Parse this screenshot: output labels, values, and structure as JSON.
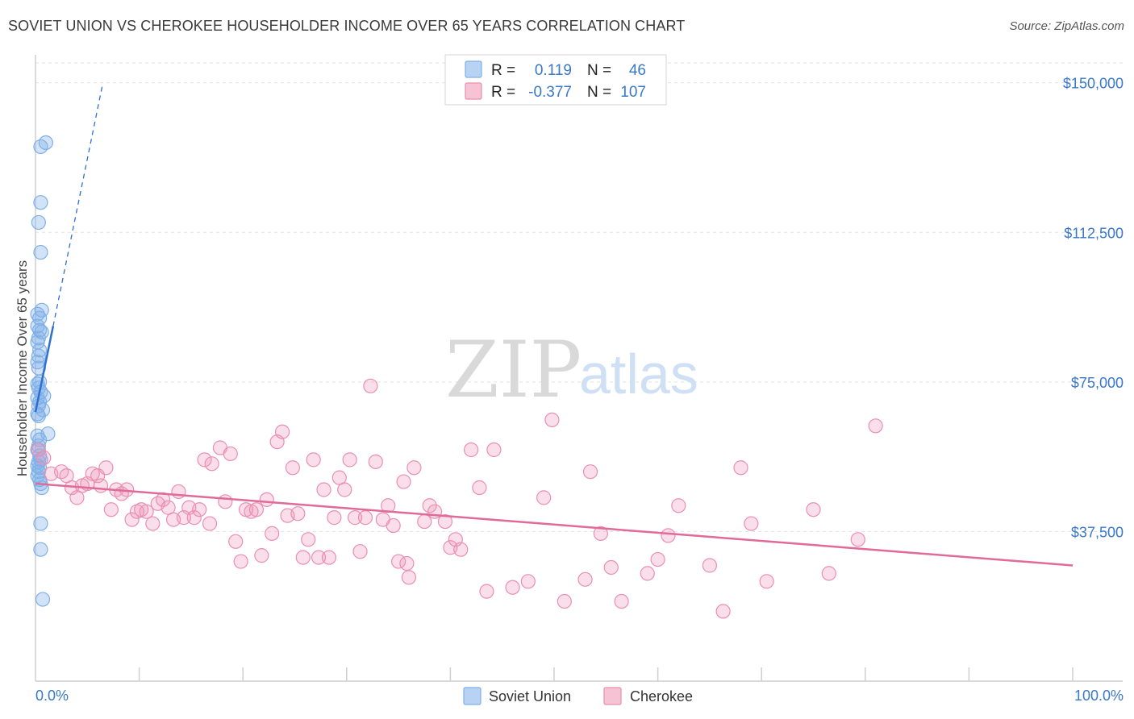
{
  "chart_data": {
    "type": "scatter",
    "title": "SOVIET UNION VS CHEROKEE HOUSEHOLDER INCOME OVER 65 YEARS CORRELATION CHART",
    "source": "Source: ZipAtlas.com",
    "xlabel": "",
    "ylabel": "Householder Income Over 65 years",
    "xlim": [
      0,
      100
    ],
    "ylim": [
      0,
      155000
    ],
    "x_tick_labels": [
      "0.0%",
      "100.0%"
    ],
    "y_ticks": [
      {
        "value": 37500,
        "label": "$37,500"
      },
      {
        "value": 75000,
        "label": "$75,000"
      },
      {
        "value": 112500,
        "label": "$112,500"
      },
      {
        "value": 150000,
        "label": "$150,000"
      }
    ],
    "watermark": {
      "a": "ZIP",
      "b": "atlas"
    },
    "legend": [
      {
        "name": "Soviet Union",
        "r_label": "R =",
        "r": "0.119",
        "n_label": "N =",
        "n": "46",
        "color": "#7fb0e8",
        "fill": "#b7d2f3"
      },
      {
        "name": "Cherokee",
        "r_label": "R =",
        "r": "-0.377",
        "n_label": "N =",
        "n": "107",
        "color": "#ea8fb0",
        "fill": "#f6c3d5"
      }
    ],
    "series": [
      {
        "name": "Soviet Union",
        "color": "#7fb0e8",
        "trend_color": "#2f6fd0",
        "trend_solid": [
          [
            0,
            67500
          ],
          [
            1.7,
            89000
          ]
        ],
        "trend_dashed": [
          [
            1.7,
            89000
          ],
          [
            6.5,
            150000
          ]
        ],
        "points": [
          [
            1.0,
            135000
          ],
          [
            0.5,
            134000
          ],
          [
            0.5,
            120000
          ],
          [
            0.3,
            115000
          ],
          [
            0.5,
            107500
          ],
          [
            0.6,
            93000
          ],
          [
            0.2,
            92000
          ],
          [
            0.4,
            91000
          ],
          [
            0.2,
            89000
          ],
          [
            0.4,
            88000
          ],
          [
            0.6,
            87500
          ],
          [
            0.3,
            86000
          ],
          [
            0.2,
            85000
          ],
          [
            0.4,
            83000
          ],
          [
            0.3,
            81500
          ],
          [
            0.2,
            80000
          ],
          [
            0.3,
            78500
          ],
          [
            0.4,
            75000
          ],
          [
            0.2,
            74500
          ],
          [
            0.3,
            73500
          ],
          [
            0.5,
            72500
          ],
          [
            0.8,
            71500
          ],
          [
            0.2,
            71000
          ],
          [
            0.4,
            70000
          ],
          [
            0.3,
            69000
          ],
          [
            0.7,
            68000
          ],
          [
            0.2,
            67000
          ],
          [
            0.3,
            66500
          ],
          [
            1.2,
            62000
          ],
          [
            0.2,
            61500
          ],
          [
            0.4,
            60500
          ],
          [
            0.3,
            59000
          ],
          [
            0.2,
            58000
          ],
          [
            0.4,
            56500
          ],
          [
            0.5,
            55500
          ],
          [
            0.3,
            55000
          ],
          [
            0.2,
            54000
          ],
          [
            0.4,
            53500
          ],
          [
            0.3,
            52500
          ],
          [
            0.2,
            51500
          ],
          [
            0.4,
            50500
          ],
          [
            0.5,
            49500
          ],
          [
            0.6,
            48500
          ],
          [
            0.5,
            39500
          ],
          [
            0.5,
            33000
          ],
          [
            0.7,
            20500
          ]
        ]
      },
      {
        "name": "Cherokee",
        "color": "#ea8fb0",
        "trend_color": "#e06a98",
        "trend": [
          [
            0,
            49500
          ],
          [
            100,
            29000
          ]
        ],
        "points": [
          [
            0.3,
            58000
          ],
          [
            0.8,
            56000
          ],
          [
            1.5,
            52000
          ],
          [
            2.5,
            52500
          ],
          [
            3.0,
            51500
          ],
          [
            3.5,
            48500
          ],
          [
            4.0,
            46000
          ],
          [
            4.5,
            49000
          ],
          [
            5.0,
            49500
          ],
          [
            5.5,
            52000
          ],
          [
            6.0,
            51500
          ],
          [
            6.3,
            49000
          ],
          [
            6.8,
            53500
          ],
          [
            7.3,
            43000
          ],
          [
            7.8,
            48000
          ],
          [
            8.3,
            47000
          ],
          [
            8.8,
            48000
          ],
          [
            9.3,
            40500
          ],
          [
            9.8,
            42500
          ],
          [
            10.2,
            43000
          ],
          [
            10.7,
            42500
          ],
          [
            11.3,
            39500
          ],
          [
            11.8,
            44500
          ],
          [
            12.3,
            45500
          ],
          [
            12.8,
            43500
          ],
          [
            13.3,
            40500
          ],
          [
            13.8,
            47500
          ],
          [
            14.3,
            41000
          ],
          [
            14.8,
            43500
          ],
          [
            15.3,
            41000
          ],
          [
            15.8,
            43000
          ],
          [
            16.3,
            55500
          ],
          [
            17.0,
            54500
          ],
          [
            16.8,
            39500
          ],
          [
            17.8,
            58500
          ],
          [
            18.3,
            45000
          ],
          [
            18.8,
            57000
          ],
          [
            19.3,
            35000
          ],
          [
            19.8,
            30000
          ],
          [
            20.3,
            43000
          ],
          [
            20.8,
            42500
          ],
          [
            21.3,
            43000
          ],
          [
            21.8,
            31500
          ],
          [
            22.3,
            45500
          ],
          [
            22.8,
            37000
          ],
          [
            23.3,
            60000
          ],
          [
            23.8,
            62500
          ],
          [
            24.3,
            41500
          ],
          [
            24.8,
            53500
          ],
          [
            25.3,
            42000
          ],
          [
            25.8,
            31000
          ],
          [
            26.3,
            35500
          ],
          [
            26.8,
            55500
          ],
          [
            27.3,
            31000
          ],
          [
            27.8,
            48000
          ],
          [
            28.3,
            31000
          ],
          [
            28.8,
            41000
          ],
          [
            29.3,
            51000
          ],
          [
            29.8,
            48000
          ],
          [
            30.3,
            55500
          ],
          [
            30.8,
            41000
          ],
          [
            31.3,
            32500
          ],
          [
            31.8,
            41000
          ],
          [
            32.3,
            74000
          ],
          [
            32.8,
            55000
          ],
          [
            33.5,
            40500
          ],
          [
            34.0,
            44000
          ],
          [
            34.5,
            39000
          ],
          [
            35.0,
            30000
          ],
          [
            35.5,
            50000
          ],
          [
            35.8,
            29500
          ],
          [
            36.0,
            26000
          ],
          [
            36.5,
            53500
          ],
          [
            37.5,
            40000
          ],
          [
            38.0,
            44000
          ],
          [
            38.5,
            42500
          ],
          [
            39.5,
            40000
          ],
          [
            40.0,
            33500
          ],
          [
            40.5,
            35500
          ],
          [
            41.0,
            33000
          ],
          [
            42.0,
            58000
          ],
          [
            42.8,
            48500
          ],
          [
            43.5,
            22500
          ],
          [
            44.2,
            58000
          ],
          [
            46.0,
            23500
          ],
          [
            47.5,
            25000
          ],
          [
            49.0,
            46000
          ],
          [
            49.8,
            65500
          ],
          [
            51.0,
            20000
          ],
          [
            53.0,
            25500
          ],
          [
            53.5,
            52500
          ],
          [
            54.5,
            37000
          ],
          [
            55.5,
            28500
          ],
          [
            56.5,
            20000
          ],
          [
            59.0,
            27000
          ],
          [
            60.0,
            30500
          ],
          [
            61.0,
            36500
          ],
          [
            62.0,
            44000
          ],
          [
            65.0,
            29000
          ],
          [
            66.3,
            17500
          ],
          [
            68.0,
            53500
          ],
          [
            69.0,
            39500
          ],
          [
            70.5,
            25000
          ],
          [
            75.0,
            43000
          ],
          [
            76.5,
            27000
          ],
          [
            79.3,
            35500
          ],
          [
            81.0,
            64000
          ]
        ]
      }
    ]
  }
}
